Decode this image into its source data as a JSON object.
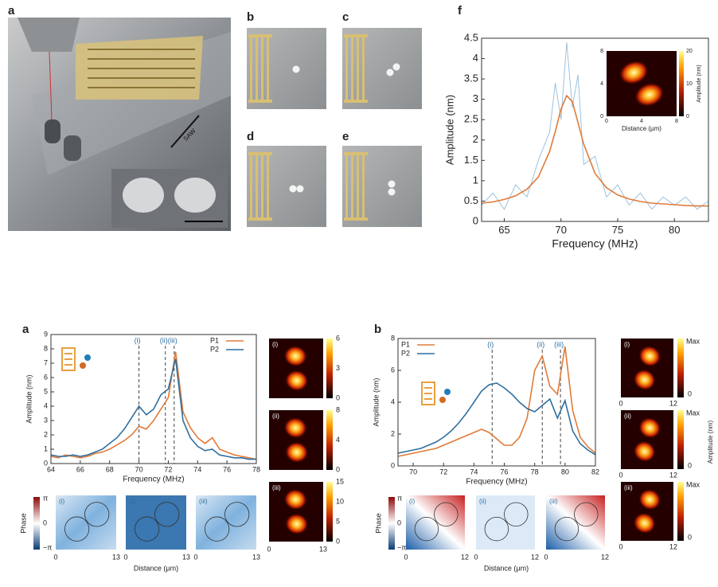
{
  "figure": {
    "panel_labels": [
      "a",
      "b",
      "c",
      "d",
      "e",
      "f",
      "a",
      "b"
    ],
    "saw_label": "SAW",
    "a_maps": [
      {
        "label": "(i)",
        "ticks": [
          "0",
          "3",
          "6"
        ]
      },
      {
        "label": "(ii)",
        "ticks": [
          "0",
          "4",
          "8"
        ]
      },
      {
        "label": "(iii)",
        "ticks": [
          "0",
          "5",
          "10",
          "15"
        ]
      }
    ],
    "a_maps_xticks": [
      "0",
      "13"
    ],
    "a_phase": {
      "ylabel": "Phase",
      "cbar": [
        "π",
        "0",
        "−π"
      ],
      "labels": [
        "(i)",
        "(ii)",
        "(iii)"
      ],
      "xticks": [
        "0",
        "13"
      ],
      "xlabel": "Distance (μm)"
    },
    "b_maps": {
      "labels": [
        "(i)",
        "(ii)",
        "(iii)"
      ],
      "cbar": [
        "Max",
        "0"
      ],
      "xticks": [
        "0",
        "12"
      ],
      "unit": "Amplitude (nm)"
    },
    "b_phase": {
      "ylabel": "Phase",
      "cbar": [
        "π",
        "0",
        "−π"
      ],
      "labels": [
        "(i)",
        "(ii)",
        "(iii)"
      ],
      "xticks": [
        "0",
        "12"
      ],
      "xlabel": "Distance (μm)"
    }
  },
  "chart_data": [
    {
      "type": "line",
      "xlabel": "Frequency (MHz)",
      "ylabel": "Amplitude (nm)",
      "x": [
        63,
        64,
        65,
        66,
        67,
        68,
        69,
        69.5,
        70,
        70.5,
        71,
        71.5,
        72,
        73,
        74,
        75,
        76,
        77,
        78,
        79,
        80,
        81,
        82,
        83
      ],
      "series": [
        {
          "color": "#9cc2e0",
          "values": [
            0.4,
            0.7,
            0.3,
            0.9,
            0.6,
            1.5,
            2.2,
            3.4,
            2.5,
            4.4,
            2.8,
            3.6,
            1.4,
            1.6,
            0.6,
            0.9,
            0.4,
            0.7,
            0.3,
            0.6,
            0.4,
            0.6,
            0.3,
            0.5
          ]
        },
        {
          "color": "#e07b39",
          "values": [
            0.45,
            0.48,
            0.54,
            0.63,
            0.79,
            1.09,
            1.72,
            2.21,
            2.76,
            3.09,
            2.94,
            2.43,
            1.9,
            1.18,
            0.83,
            0.65,
            0.55,
            0.49,
            0.45,
            0.43,
            0.41,
            0.39,
            0.38,
            0.38
          ]
        }
      ],
      "xlim": [
        63,
        83
      ],
      "xticks": [
        65,
        70,
        75,
        80
      ],
      "ylim": [
        0,
        4.5
      ],
      "yticks": [
        0,
        0.5,
        1,
        1.5,
        2,
        2.5,
        3,
        3.5,
        4,
        4.5
      ],
      "inset": {
        "xticks": [
          "0",
          "4",
          "8"
        ],
        "yticks": [
          "0",
          "4",
          "8"
        ],
        "colorbar_ticks": [
          "0",
          "10",
          "20"
        ],
        "colorbar_label": "Amplitude (nm)",
        "xlabel": "Distance (μm)"
      }
    },
    {
      "type": "line",
      "xlabel": "Frequency (MHz)",
      "ylabel": "Amplitude (nm)",
      "x": [
        64,
        64.5,
        65,
        65.5,
        66,
        66.5,
        67,
        67.5,
        68,
        68.5,
        69,
        69.5,
        70,
        70.5,
        71,
        71.5,
        72,
        72.5,
        73,
        73.5,
        74,
        74.5,
        75,
        75.5,
        76,
        76.5,
        77,
        77.5,
        78
      ],
      "series": [
        {
          "name": "P1",
          "color": "#e07b39",
          "values": [
            0.5,
            0.4,
            0.6,
            0.5,
            0.4,
            0.5,
            0.7,
            0.8,
            1.0,
            1.3,
            1.6,
            2.0,
            2.6,
            2.4,
            3.0,
            3.8,
            4.6,
            7.8,
            3.6,
            2.5,
            1.8,
            1.4,
            1.8,
            1.0,
            0.8,
            0.6,
            0.5,
            0.4,
            0.3
          ]
        },
        {
          "name": "P2",
          "color": "#2f6f9f",
          "values": [
            0.6,
            0.5,
            0.5,
            0.6,
            0.5,
            0.6,
            0.8,
            1.0,
            1.4,
            1.8,
            2.4,
            3.2,
            4.0,
            3.4,
            3.8,
            4.8,
            5.2,
            7.3,
            3.0,
            1.8,
            1.2,
            0.9,
            1.0,
            0.6,
            0.5,
            0.4,
            0.4,
            0.3,
            0.3
          ]
        }
      ],
      "xlim": [
        64,
        78
      ],
      "xticks": [
        64,
        66,
        68,
        70,
        72,
        74,
        76,
        78
      ],
      "ylim": [
        0,
        9
      ],
      "yticks": [
        0,
        1,
        2,
        3,
        4,
        5,
        6,
        7,
        8,
        9
      ],
      "markers": [
        {
          "x": 70,
          "label": "(i)"
        },
        {
          "x": 71.8,
          "label": "(ii)"
        },
        {
          "x": 72.4,
          "label": "(iii)"
        }
      ],
      "legend": "upper right"
    },
    {
      "type": "line",
      "xlabel": "Frequency (MHz)",
      "ylabel": "Amplitude (nm)",
      "x": [
        69,
        69.5,
        70,
        70.5,
        71,
        71.5,
        72,
        72.5,
        73,
        73.5,
        74,
        74.5,
        75,
        75.5,
        76,
        76.5,
        77,
        77.5,
        78,
        78.5,
        79,
        79.5,
        80,
        80.5,
        81,
        81.5,
        82
      ],
      "series": [
        {
          "name": "P1",
          "color": "#e07b39",
          "values": [
            0.6,
            0.7,
            0.8,
            0.9,
            1.0,
            1.1,
            1.3,
            1.5,
            1.7,
            1.9,
            2.1,
            2.3,
            2.1,
            1.7,
            1.3,
            1.3,
            1.8,
            3.0,
            6.0,
            6.9,
            5.0,
            4.5,
            7.5,
            3.5,
            1.8,
            1.2,
            0.8
          ]
        },
        {
          "name": "P2",
          "color": "#2f6f9f",
          "values": [
            0.8,
            0.9,
            1.0,
            1.1,
            1.3,
            1.5,
            1.8,
            2.2,
            2.7,
            3.3,
            4.0,
            4.7,
            5.1,
            5.2,
            4.9,
            4.5,
            4.0,
            3.6,
            3.4,
            3.8,
            4.2,
            3.0,
            4.1,
            2.2,
            1.4,
            1.0,
            0.7
          ]
        }
      ],
      "xlim": [
        69,
        82
      ],
      "xticks": [
        70,
        72,
        74,
        76,
        78,
        80,
        82
      ],
      "ylim": [
        0,
        8
      ],
      "yticks": [
        0,
        2,
        4,
        6,
        8
      ],
      "markers": [
        {
          "x": 75.2,
          "label": "(i)"
        },
        {
          "x": 78.5,
          "label": "(ii)"
        },
        {
          "x": 79.7,
          "label": "(iii)"
        }
      ],
      "legend": "upper left"
    }
  ]
}
